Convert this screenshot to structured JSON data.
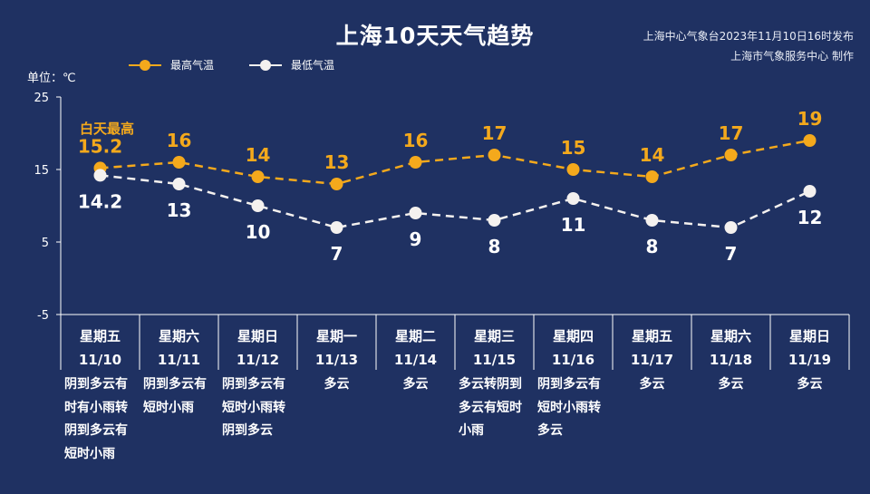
{
  "header": {
    "title": "上海10天天气趋势",
    "source_line1": "上海中心气象台2023年11月10日16时发布",
    "source_line2": "上海市气象服务中心 制作",
    "unit_label": "单位：℃"
  },
  "colors": {
    "background": "#1f3162",
    "high": "#f4a91c",
    "low": "#f4f1ef",
    "axis": "#ffffff"
  },
  "chart_data": {
    "type": "line",
    "categories": [
      "11/10",
      "11/11",
      "11/12",
      "11/13",
      "11/14",
      "11/15",
      "11/16",
      "11/17",
      "11/18",
      "11/19"
    ],
    "weekdays": [
      "星期五",
      "星期六",
      "星期日",
      "星期一",
      "星期二",
      "星期三",
      "星期四",
      "星期五",
      "星期六",
      "星期日"
    ],
    "series": [
      {
        "name": "最高气温",
        "values": [
          15.2,
          16,
          14,
          13,
          16,
          17,
          15,
          14,
          17,
          19
        ]
      },
      {
        "name": "最低气温",
        "values": [
          14.2,
          13,
          10,
          7,
          9,
          8,
          11,
          8,
          7,
          12
        ]
      }
    ],
    "labels_high": [
      "15.2",
      "16",
      "14",
      "13",
      "16",
      "17",
      "15",
      "14",
      "17",
      "19"
    ],
    "labels_low": [
      "14.2",
      "13",
      "10",
      "7",
      "9",
      "8",
      "11",
      "8",
      "7",
      "12"
    ],
    "yticks": [
      25,
      15,
      5,
      -5
    ],
    "ylim": [
      -5,
      25
    ],
    "ylabel": "单位：℃",
    "annotation": "白天最高",
    "legend_position": "top-left",
    "grid": false
  },
  "weather": [
    "阴到多云有时有小雨转阴到多云有短时小雨",
    "阴到多云有短时小雨",
    "阴到多云有短时小雨转阴到多云",
    "多云",
    "多云",
    "多云转阴到多云有短时小雨",
    "阴到多云有短时小雨转多云",
    "多云",
    "多云",
    "多云"
  ]
}
